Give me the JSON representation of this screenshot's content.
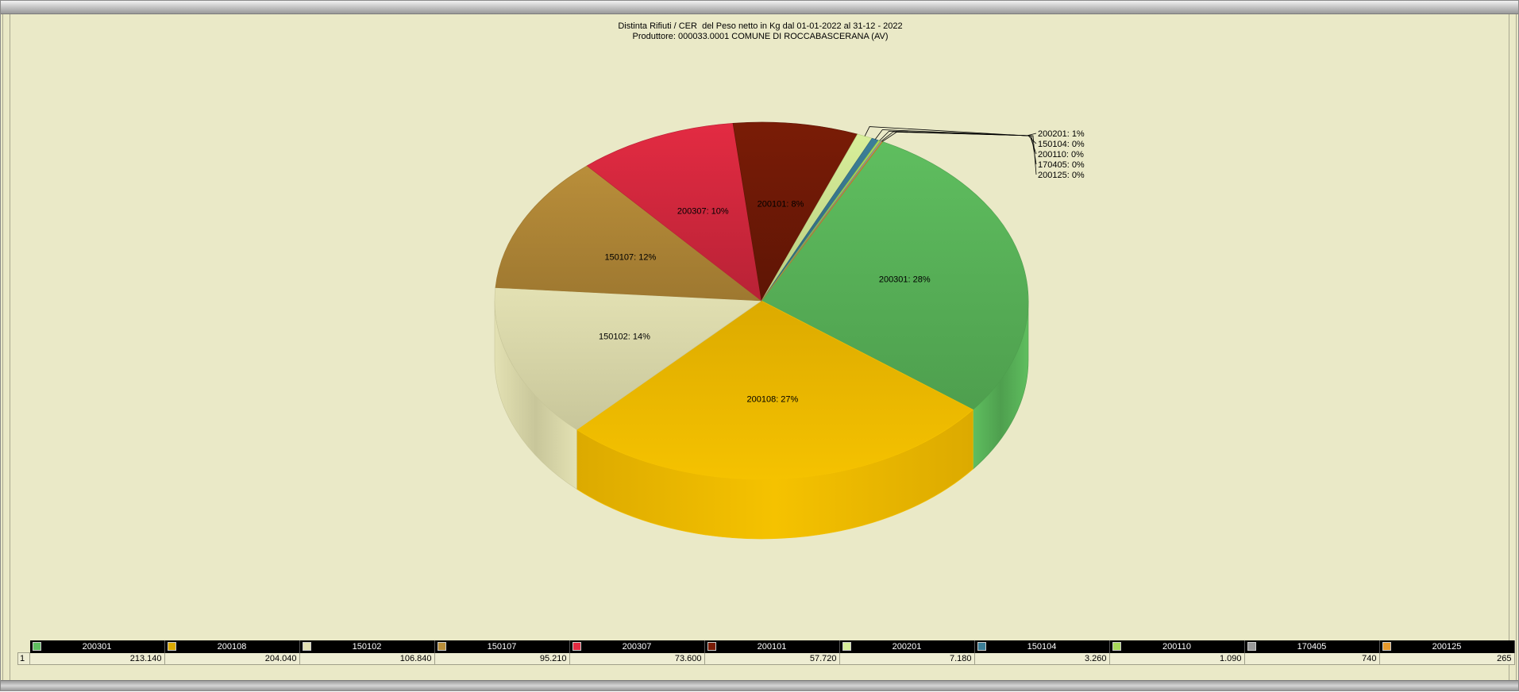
{
  "window": {
    "title_lines": [
      "Distinta Rifiuti / CER  del Peso netto in Kg dal 01-01-2022 al 31-12 - 2022",
      "Produttore: 000033.0001 COMUNE DI ROCCABASCERANA (AV)"
    ]
  },
  "chart_data": {
    "type": "pie",
    "style": "3d",
    "title": "Distinta Rifiuti / CER  del Peso netto in Kg dal 01-01-2022 al 31-12 - 2022",
    "subtitle": "Produttore: 000033.0001 COMUNE DI ROCCABASCERANA (AV)",
    "slices": [
      {
        "name": "200301",
        "value": 213140,
        "value_label": "213.140",
        "pct_label": "28%",
        "color": "#5fbe5f",
        "side_color": "#4e9f4e"
      },
      {
        "name": "200108",
        "value": 204040,
        "value_label": "204.040",
        "pct_label": "27%",
        "color": "#dcaa00",
        "side_color": "#f5c200"
      },
      {
        "name": "150102",
        "value": 106840,
        "value_label": "106.840",
        "pct_label": "14%",
        "color": "#e3e1b3",
        "side_color": "#c8c69a"
      },
      {
        "name": "150107",
        "value": 95210,
        "value_label": "95.210",
        "pct_label": "12%",
        "color": "#b98e3a",
        "side_color": "#9e7830"
      },
      {
        "name": "200307",
        "value": 73600,
        "value_label": "73.600",
        "pct_label": "10%",
        "color": "#e32b42",
        "side_color": "#b82236"
      },
      {
        "name": "200101",
        "value": 57720,
        "value_label": "57.720",
        "pct_label": "8%",
        "color": "#7a1c06",
        "side_color": "#5e1505"
      },
      {
        "name": "200201",
        "value": 7180,
        "value_label": "7.180",
        "pct_label": "1%",
        "color": "#d8ef9a",
        "side_color": "#b8cc80"
      },
      {
        "name": "150104",
        "value": 3260,
        "value_label": "3.260",
        "pct_label": "0%",
        "color": "#3c7f98",
        "side_color": "#2f6578"
      },
      {
        "name": "200110",
        "value": 1090,
        "value_label": "1.090",
        "pct_label": "0%",
        "color": "#a8d85a",
        "side_color": "#8ab848"
      },
      {
        "name": "170405",
        "value": 740,
        "value_label": "740",
        "pct_label": "0%",
        "color": "#9a9a9a",
        "side_color": "#7c7c7c"
      },
      {
        "name": "200125",
        "value": 265,
        "value_label": "265",
        "pct_label": "0%",
        "color": "#e89a2c",
        "side_color": "#c47e20"
      }
    ],
    "legend_position": "bottom-table",
    "row_label": "1"
  }
}
